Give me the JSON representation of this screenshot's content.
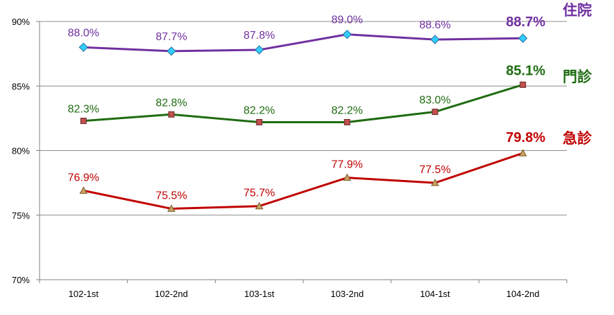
{
  "chart_data": {
    "type": "line",
    "categories": [
      "102-1st",
      "102-2nd",
      "103-1st",
      "103-2nd",
      "104-1st",
      "104-2nd"
    ],
    "ylim": [
      70,
      90
    ],
    "yticks": [
      90,
      85,
      80,
      75,
      70
    ],
    "ytick_labels": [
      "90%",
      "85%",
      "80%",
      "75%",
      "70%"
    ],
    "grid": true,
    "legend": "right",
    "series": [
      {
        "key": "inpatient",
        "name": "住院",
        "color": "#7030A0",
        "marker_color": "#33CCFF",
        "marker": "diamond",
        "values": [
          88.0,
          87.7,
          87.8,
          89.0,
          88.6,
          88.7
        ],
        "labels": [
          "88.0%",
          "87.7%",
          "87.8%",
          "89.0%",
          "88.6%",
          "88.7%"
        ]
      },
      {
        "key": "outpatient",
        "name": "門診",
        "color": "#1E6B10",
        "marker_color": "#C0504D",
        "marker": "square",
        "values": [
          82.3,
          82.8,
          82.2,
          82.2,
          83.0,
          85.1
        ],
        "labels": [
          "82.3%",
          "82.8%",
          "82.2%",
          "82.2%",
          "83.0%",
          "85.1%"
        ]
      },
      {
        "key": "emergency",
        "name": "急診",
        "color": "#C00000",
        "marker_color": "#C8A060",
        "marker": "triangle",
        "values": [
          76.9,
          75.5,
          75.7,
          77.9,
          77.5,
          79.8
        ],
        "labels": [
          "76.9%",
          "75.5%",
          "75.7%",
          "77.9%",
          "77.5%",
          "79.8%"
        ]
      }
    ]
  }
}
